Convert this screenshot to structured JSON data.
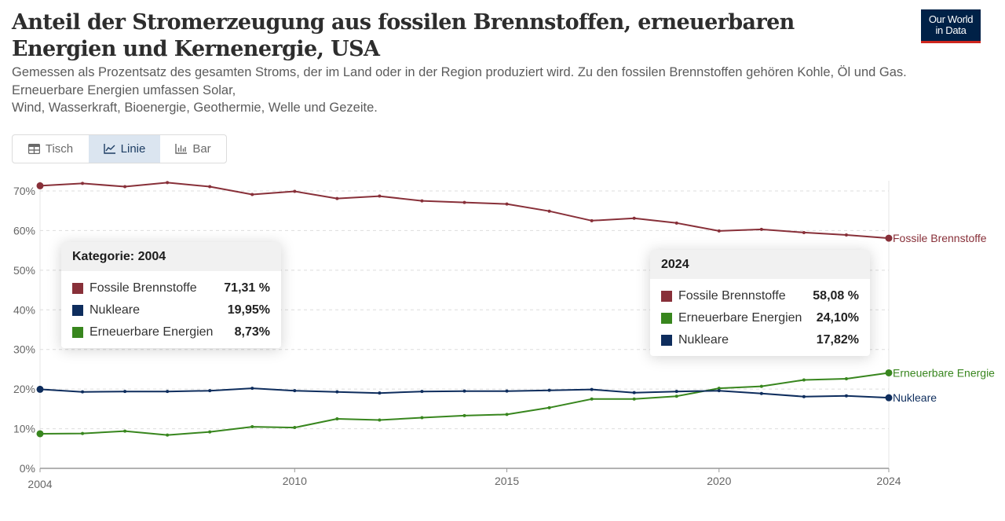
{
  "header": {
    "title": "Anteil der Stromerzeugung aus fossilen Brennstoffen, erneuerbaren Energien und Kernenergie, USA",
    "subtitle_lines": [
      "Gemessen als Prozentsatz des gesamten Stroms, der im Land oder in der Region produziert wird. Zu den fossilen Brennstoffen gehören Kohle, Öl und Gas.",
      "Erneuerbare Energien umfassen Solar,",
      "Wind, Wasserkraft, Bioenergie, Geothermie, Welle und Gezeite."
    ],
    "logo_lines": [
      "Our World",
      "in Data"
    ]
  },
  "tabs": [
    {
      "label": "Tisch",
      "icon": "table-icon",
      "active": false
    },
    {
      "label": "Linie",
      "icon": "line-chart-icon",
      "active": true
    },
    {
      "label": "Bar",
      "icon": "bar-chart-icon",
      "active": false
    }
  ],
  "colors": {
    "fossil": "#883039",
    "nuclear": "#0e2d5d",
    "renewable": "#38861e",
    "grid": "#dddddd",
    "axis_text": "#666666"
  },
  "tooltips": [
    {
      "header": "Kategorie: 2004",
      "rows": [
        {
          "name": "Fossile Brennstoffe",
          "value": "71,31 %",
          "color": "#883039"
        },
        {
          "name": "Nukleare",
          "value": "19,95%",
          "color": "#0e2d5d"
        },
        {
          "name": "Erneuerbare Energien",
          "value": "8,73%",
          "color": "#38861e"
        }
      ]
    },
    {
      "header": "2024",
      "rows": [
        {
          "name": "Fossile Brennstoffe",
          "value": "58,08 %",
          "color": "#883039"
        },
        {
          "name": "Erneuerbare Energien",
          "value": "24,10%",
          "color": "#38861e"
        },
        {
          "name": "Nukleare",
          "value": "17,82%",
          "color": "#0e2d5d"
        }
      ]
    }
  ],
  "chart_data": {
    "type": "line",
    "title": "Anteil der Stromerzeugung aus fossilen Brennstoffen, erneuerbaren Energien und Kernenergie, USA",
    "xlabel": "",
    "ylabel": "",
    "x": [
      2004,
      2005,
      2006,
      2007,
      2008,
      2009,
      2010,
      2011,
      2012,
      2013,
      2014,
      2015,
      2016,
      2017,
      2018,
      2019,
      2020,
      2021,
      2022,
      2023,
      2024
    ],
    "xlim": [
      2004,
      2024
    ],
    "ylim": [
      0,
      70
    ],
    "x_ticks": [
      2004,
      2010,
      2015,
      2020,
      2024
    ],
    "y_ticks": [
      0,
      10,
      20,
      30,
      40,
      50,
      60,
      70
    ],
    "y_tick_labels": [
      "0%",
      "10%",
      "20%",
      "30%",
      "40%",
      "50%",
      "60%",
      "70%"
    ],
    "grid": "horizontal-dashed",
    "legend": "inline-right",
    "series": [
      {
        "name": "Fossile Brennstoffe",
        "color": "#883039",
        "values": [
          71.31,
          71.9,
          71.1,
          72.1,
          71.1,
          69.1,
          69.9,
          68.1,
          68.7,
          67.5,
          67.1,
          66.7,
          64.9,
          62.5,
          63.1,
          61.9,
          59.9,
          60.3,
          59.5,
          58.9,
          58.08
        ]
      },
      {
        "name": "Erneuerbare Energien",
        "color": "#38861e",
        "values": [
          8.73,
          8.8,
          9.4,
          8.4,
          9.2,
          10.5,
          10.3,
          12.5,
          12.2,
          12.8,
          13.3,
          13.6,
          15.3,
          17.5,
          17.5,
          18.2,
          20.2,
          20.7,
          22.3,
          22.6,
          24.1
        ]
      },
      {
        "name": "Nukleare",
        "color": "#0e2d5d",
        "values": [
          19.95,
          19.3,
          19.4,
          19.4,
          19.6,
          20.2,
          19.6,
          19.3,
          19.0,
          19.4,
          19.5,
          19.5,
          19.7,
          19.9,
          19.1,
          19.4,
          19.6,
          18.9,
          18.1,
          18.3,
          17.82
        ]
      }
    ],
    "end_labels": [
      "Fossile Brennstoffe",
      "Erneuerbare Energie",
      "Nukleare"
    ]
  }
}
